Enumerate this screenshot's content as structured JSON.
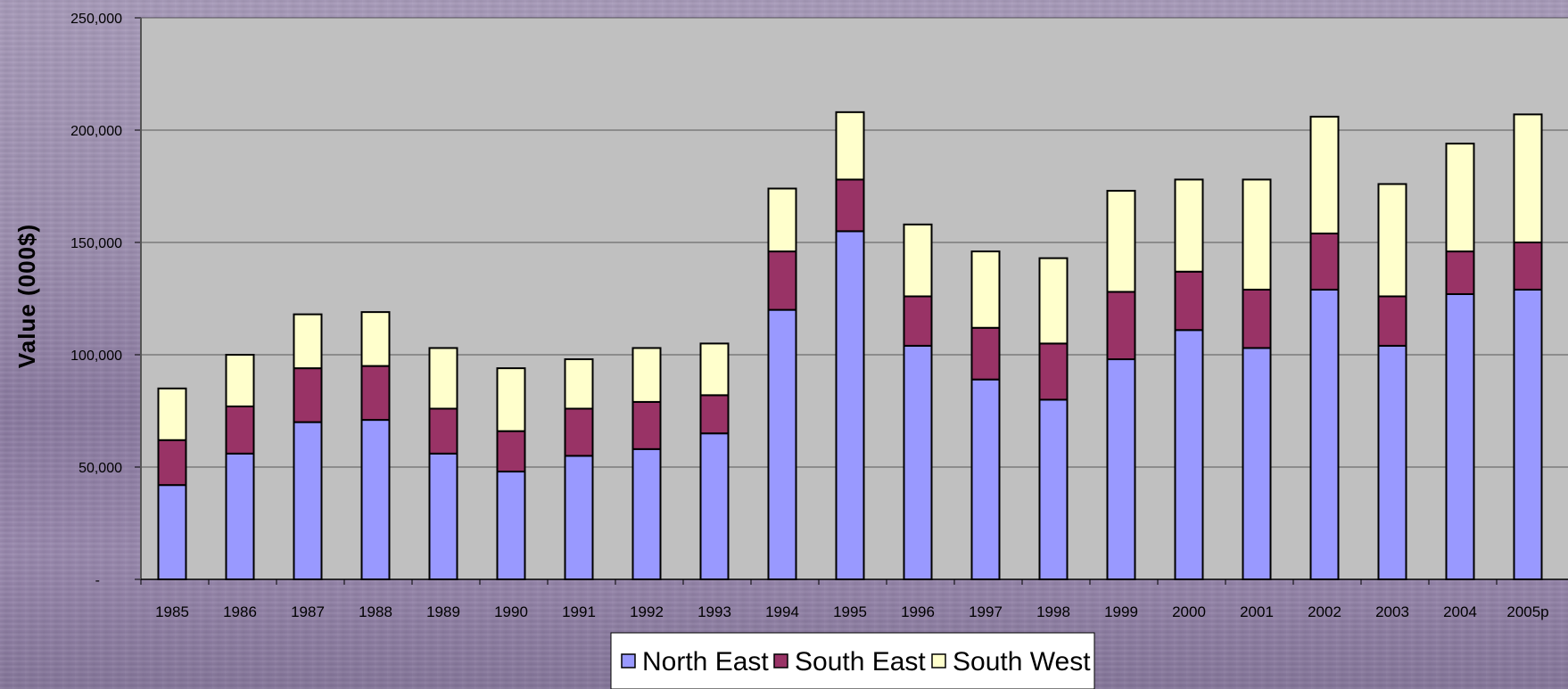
{
  "chart_data": {
    "type": "bar",
    "stacked": true,
    "title": "",
    "xlabel": "",
    "ylabel": "Value (000$)",
    "ylim": [
      0,
      250000
    ],
    "yticks": [
      0,
      50000,
      100000,
      150000,
      200000,
      250000
    ],
    "ytick_labels": [
      "-",
      "50,000",
      "100,000",
      "150,000",
      "200,000",
      "250,000"
    ],
    "grid": true,
    "legend_position": "bottom",
    "categories": [
      "1985",
      "1986",
      "1987",
      "1988",
      "1989",
      "1990",
      "1991",
      "1992",
      "1993",
      "1994",
      "1995",
      "1996",
      "1997",
      "1998",
      "1999",
      "2000",
      "2001",
      "2002",
      "2003",
      "2004",
      "2005p"
    ],
    "series": [
      {
        "name": "North East",
        "color": "#9999ff",
        "values": [
          42000,
          56000,
          70000,
          71000,
          56000,
          48000,
          55000,
          58000,
          65000,
          120000,
          155000,
          104000,
          89000,
          80000,
          98000,
          111000,
          103000,
          129000,
          104000,
          127000,
          129000
        ]
      },
      {
        "name": "South East",
        "color": "#993366",
        "values": [
          20000,
          21000,
          24000,
          24000,
          20000,
          18000,
          21000,
          21000,
          17000,
          26000,
          23000,
          22000,
          23000,
          25000,
          30000,
          26000,
          26000,
          25000,
          22000,
          19000,
          21000
        ]
      },
      {
        "name": "South West",
        "color": "#ffffcc",
        "values": [
          23000,
          23000,
          24000,
          24000,
          27000,
          28000,
          22000,
          24000,
          23000,
          28000,
          30000,
          32000,
          34000,
          38000,
          45000,
          41000,
          49000,
          52000,
          50000,
          48000,
          57000
        ]
      }
    ],
    "colors": {
      "plot_background": "#c0c0c0",
      "gridline": "#000000",
      "bar_outline": "#000000"
    }
  }
}
